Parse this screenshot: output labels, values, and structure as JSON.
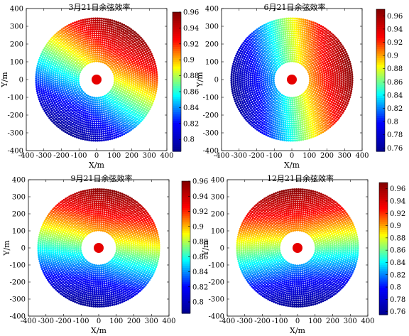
{
  "figure": {
    "background": "#ffffff"
  },
  "colormap": {
    "name": "jet",
    "stops": [
      "#00008f",
      "#0000ff",
      "#00ffff",
      "#ffff00",
      "#ff0000",
      "#800000"
    ]
  },
  "sun_marker_color": "#e60000",
  "chart_data": [
    {
      "type": "scatter",
      "title": "3月21日余弦效率",
      "xlabel": "X/m",
      "ylabel": "Y/m",
      "xlim": [
        -400,
        400
      ],
      "ylim": [
        -400,
        400
      ],
      "xticks": [
        "-400",
        "-300",
        "-200",
        "-100",
        "0",
        "100",
        "200",
        "300",
        "400"
      ],
      "yticks": [
        "400",
        "300",
        "200",
        "100",
        "0",
        "-100",
        "-200",
        "-300",
        "-400"
      ],
      "colorbar": {
        "range": [
          0.785,
          0.96
        ],
        "ticks": [
          "0.96",
          "0.94",
          "0.92",
          "0.9",
          "0.88",
          "0.86",
          "0.84",
          "0.82",
          "0.8"
        ]
      },
      "field": {
        "inner_radius": 100,
        "outer_radius": 350,
        "efficiency_peak_direction_deg": 60
      },
      "sun_center": [
        0,
        0
      ],
      "grid": false
    },
    {
      "type": "scatter",
      "title": "6月21日余弦效率",
      "xlabel": "X/m",
      "ylabel": "Y/m",
      "xlim": [
        -400,
        400
      ],
      "ylim": [
        -400,
        400
      ],
      "xticks": [
        "-400",
        "-300",
        "-200",
        "-100",
        "0",
        "100",
        "200",
        "300",
        "400"
      ],
      "yticks": [
        "400",
        "300",
        "200",
        "100",
        "0",
        "-100",
        "-200",
        "-300",
        "-400"
      ],
      "colorbar": {
        "range": [
          0.755,
          0.97
        ],
        "ticks": [
          "0.96",
          "0.94",
          "0.92",
          "0.9",
          "0.88",
          "0.86",
          "0.84",
          "0.82",
          "0.8",
          "0.78",
          "0.76"
        ]
      },
      "field": {
        "inner_radius": 100,
        "outer_radius": 350,
        "efficiency_peak_direction_deg": 10
      },
      "sun_center": [
        0,
        0
      ],
      "grid": false
    },
    {
      "type": "scatter",
      "title": "9月21日余弦效率",
      "xlabel": "X/m",
      "ylabel": "Y/m",
      "xlim": [
        -400,
        400
      ],
      "ylim": [
        -400,
        400
      ],
      "xticks": [
        "-400",
        "-300",
        "-200",
        "-100",
        "0",
        "100",
        "200",
        "300",
        "400"
      ],
      "yticks": [
        "400",
        "300",
        "200",
        "100",
        "0",
        "-100",
        "-200",
        "-300",
        "-400"
      ],
      "colorbar": {
        "range": [
          0.785,
          0.96
        ],
        "ticks": [
          "0.96",
          "0.94",
          "0.92",
          "0.9",
          "0.88",
          "0.86",
          "0.84",
          "0.82",
          "0.8"
        ]
      },
      "field": {
        "inner_radius": 100,
        "outer_radius": 350,
        "efficiency_peak_direction_deg": 80
      },
      "sun_center": [
        0,
        0
      ],
      "grid": false
    },
    {
      "type": "scatter",
      "title": "12月21日余弦效率",
      "xlabel": "X/m",
      "ylabel": "Y/m",
      "xlim": [
        -400,
        400
      ],
      "ylim": [
        -400,
        400
      ],
      "xticks": [
        "-400",
        "-300",
        "-200",
        "-100",
        "0",
        "100",
        "200",
        "300",
        "400"
      ],
      "yticks": [
        "400",
        "300",
        "200",
        "100",
        "0",
        "-100",
        "-200",
        "-300",
        "-400"
      ],
      "colorbar": {
        "range": [
          0.755,
          0.97
        ],
        "ticks": [
          "0.96",
          "0.94",
          "0.92",
          "0.9",
          "0.88",
          "0.86",
          "0.84",
          "0.82",
          "0.8",
          "0.78",
          "0.76"
        ]
      },
      "field": {
        "inner_radius": 100,
        "outer_radius": 350,
        "efficiency_peak_direction_deg": 95
      },
      "sun_center": [
        0,
        0
      ],
      "grid": false
    }
  ]
}
